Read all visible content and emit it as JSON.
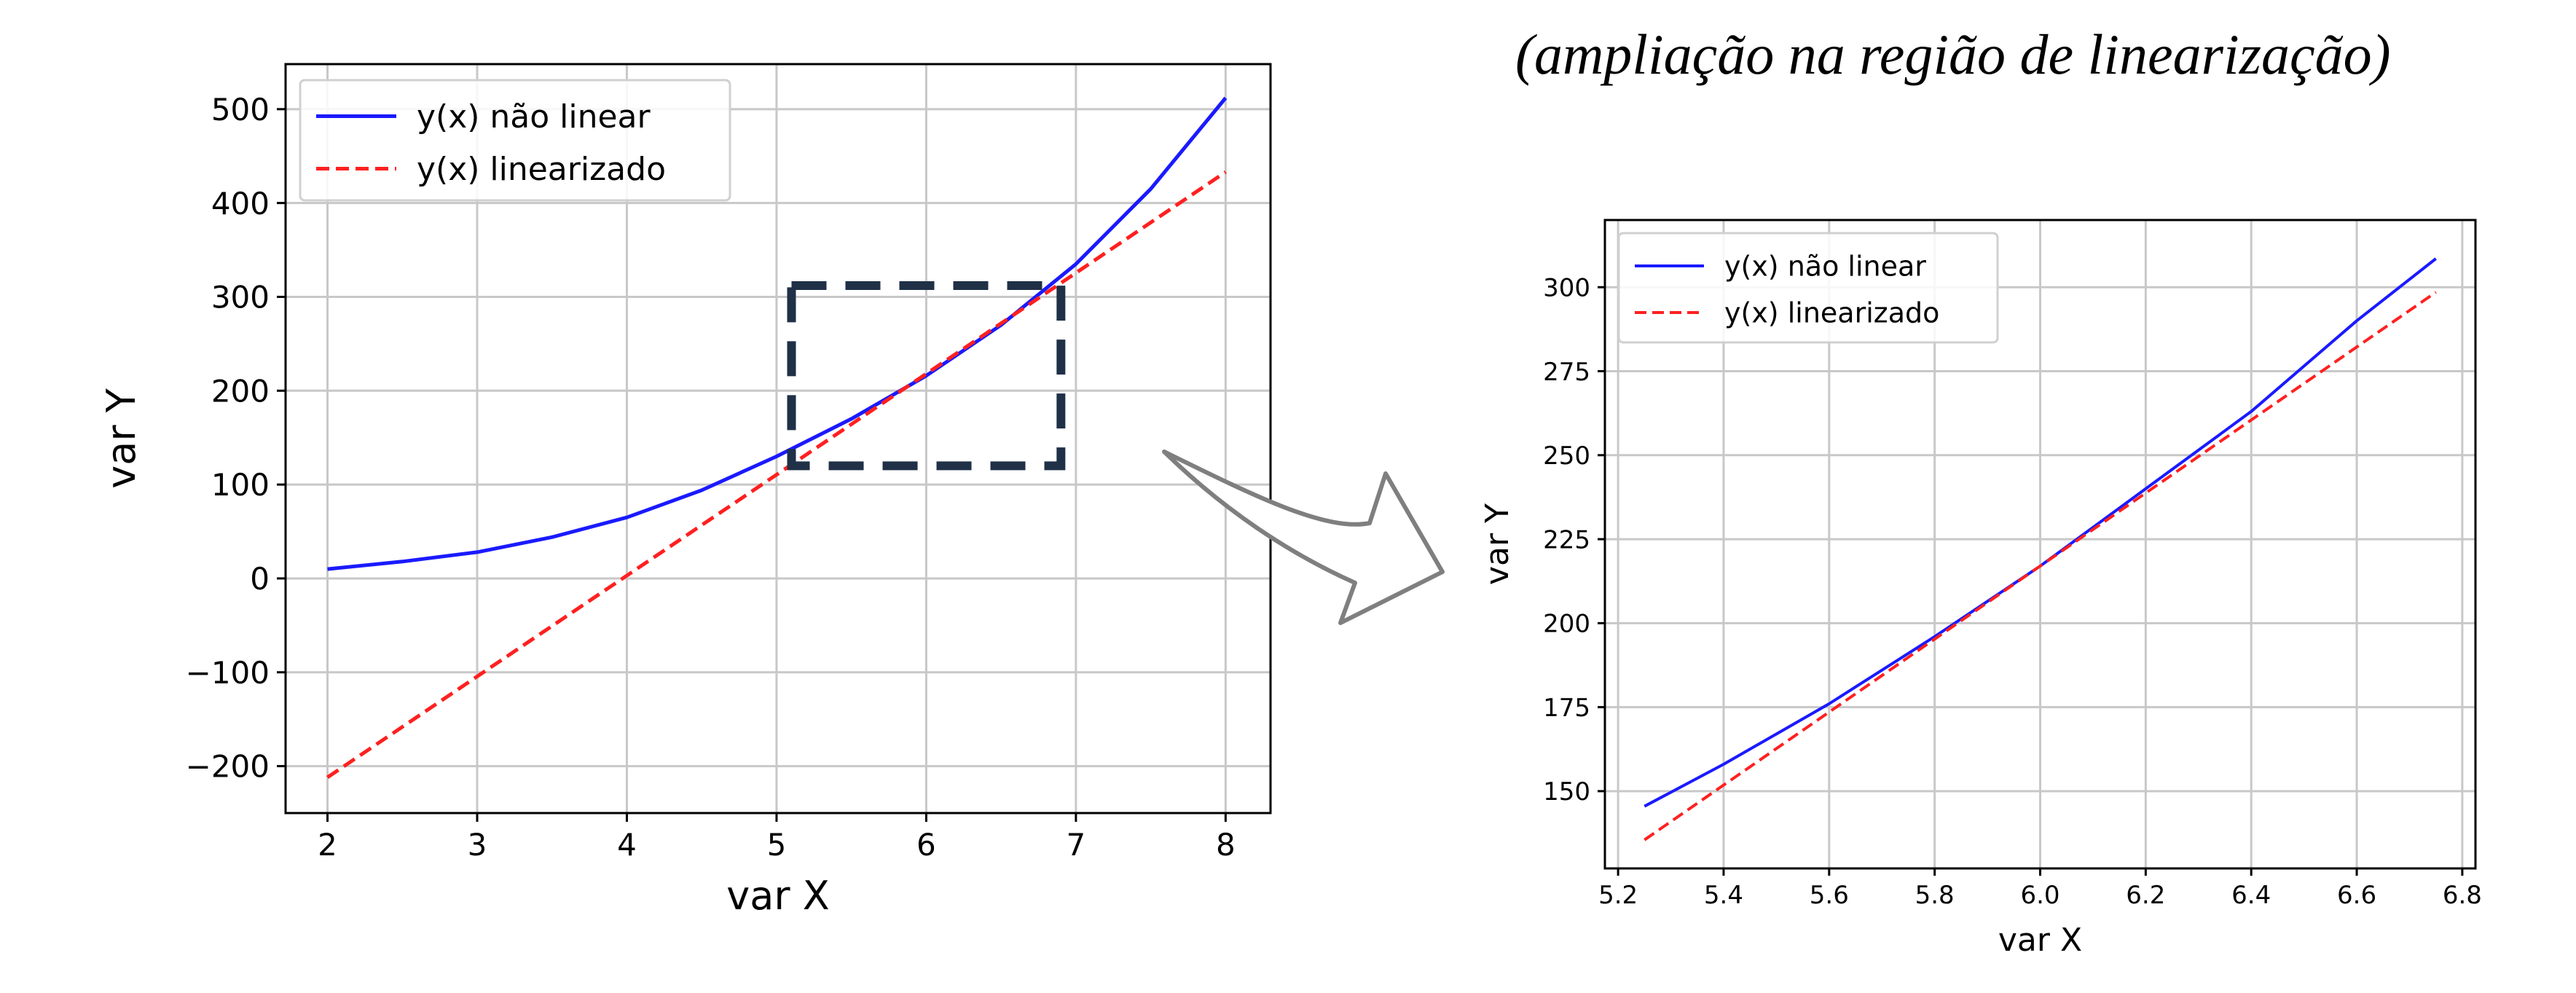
{
  "caption": "(ampliação na região de linearização)",
  "chart_data": [
    {
      "type": "line",
      "title": "",
      "xlabel": "var X",
      "ylabel": "var Y",
      "xlim": [
        1.72,
        8.3
      ],
      "ylim": [
        -250,
        548
      ],
      "xticks": [
        2,
        3,
        4,
        5,
        6,
        7,
        8
      ],
      "yticks": [
        -200,
        -100,
        0,
        100,
        200,
        300,
        400,
        500
      ],
      "ytick_labels": [
        "−200",
        "−100",
        "0",
        "100",
        "200",
        "300",
        "400",
        "500"
      ],
      "grid": true,
      "legend_position": "top-left",
      "series": [
        {
          "name": "y(x) não linear",
          "color": "#1a1aff",
          "style": "solid",
          "x": [
            2,
            2.5,
            3,
            3.5,
            4,
            4.5,
            5,
            5.5,
            6,
            6.5,
            7,
            7.5,
            8
          ],
          "y": [
            10,
            18,
            28,
            44,
            65,
            94,
            130,
            170,
            216,
            270,
            335,
            415,
            512
          ]
        },
        {
          "name": "y(x) linearizado",
          "color": "#ff2020",
          "style": "dashed",
          "x": [
            2,
            8
          ],
          "y": [
            -212,
            433
          ]
        }
      ],
      "annotations": [
        {
          "type": "dashed-rectangle",
          "x": [
            5.1,
            6.9
          ],
          "y": [
            120,
            312
          ],
          "color": "#1f3047"
        }
      ]
    },
    {
      "type": "line",
      "title": "",
      "xlabel": "var X",
      "ylabel": "var Y",
      "xlim": [
        5.175,
        6.825
      ],
      "ylim": [
        127,
        320
      ],
      "xticks": [
        5.2,
        5.4,
        5.6,
        5.8,
        6.0,
        6.2,
        6.4,
        6.6,
        6.8
      ],
      "xtick_labels": [
        "5.2",
        "5.4",
        "5.6",
        "5.8",
        "6.0",
        "6.2",
        "6.4",
        "6.6",
        "6.8"
      ],
      "yticks": [
        150,
        175,
        200,
        225,
        250,
        275,
        300
      ],
      "grid": true,
      "legend_position": "top-left",
      "series": [
        {
          "name": "y(x) não linear",
          "color": "#1a1aff",
          "style": "solid",
          "x": [
            5.25,
            5.4,
            5.6,
            5.8,
            6.0,
            6.2,
            6.4,
            6.6,
            6.75
          ],
          "y": [
            145.5,
            158,
            176,
            196,
            217,
            240,
            263,
            290,
            308.5
          ]
        },
        {
          "name": "y(x) linearizado",
          "color": "#ff2020",
          "style": "dashed",
          "x": [
            5.25,
            6.75
          ],
          "y": [
            135.5,
            298.5
          ]
        }
      ]
    }
  ],
  "arrow": {
    "fill": "#ffffff",
    "stroke": "#7f7f7f"
  }
}
